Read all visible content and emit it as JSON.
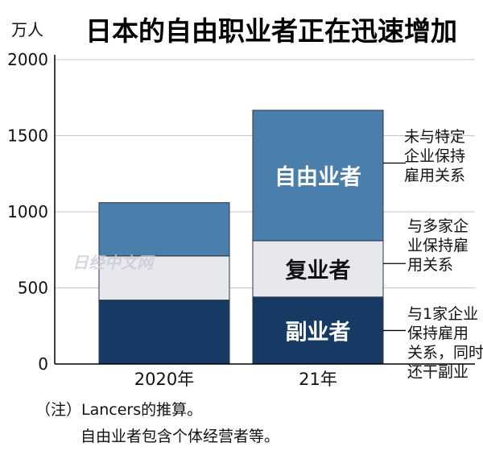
{
  "chart_data": {
    "type": "bar",
    "stacked": true,
    "title": "日本的自由职业者正在迅速增加",
    "unit_label": "万人",
    "ylim": [
      0,
      2000
    ],
    "yticks": [
      "0",
      "500",
      "1000",
      "1500",
      "2000"
    ],
    "ytick_values": [
      0,
      500,
      1000,
      1500,
      2000
    ],
    "categories": [
      "2020年",
      "21年"
    ],
    "series": [
      {
        "name": "副业者",
        "values": [
          420,
          440
        ],
        "color": "#163a64"
      },
      {
        "name": "复业者",
        "values": [
          290,
          370
        ],
        "color": "#e6e8ee"
      },
      {
        "name": "自由业者",
        "values": [
          350,
          857
        ],
        "color": "#4a7fab"
      }
    ],
    "bar_labels": [
      "副业者",
      "复业者",
      "自由业者"
    ],
    "annotations": [
      {
        "lines": [
          "未与特定",
          "企业保持",
          "雇用关系"
        ]
      },
      {
        "lines": [
          "与多家企",
          "业保持雇",
          "用关系"
        ]
      },
      {
        "lines": [
          "与1家企业",
          "保持雇用",
          "关系，同时",
          "还干副业"
        ]
      }
    ],
    "watermark": "日经中文网"
  },
  "notes": {
    "line1": "（注）Lancers的推算。",
    "line2": "自由业者包含个体经营者等。"
  }
}
